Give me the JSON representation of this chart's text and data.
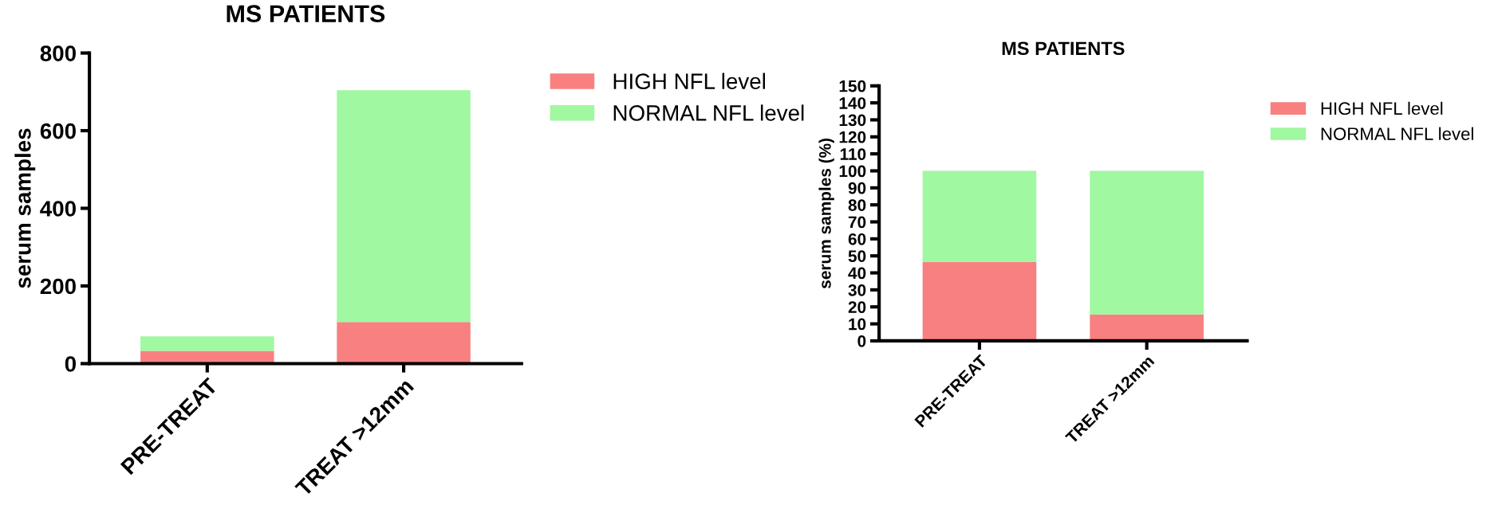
{
  "chart_data": [
    {
      "type": "bar",
      "title": "MS PATIENTS",
      "ylabel": "serum samples",
      "categories": [
        "PRE-TREAT",
        "TREAT >12mm"
      ],
      "stacked": true,
      "ylim": [
        0,
        800
      ],
      "yticks": [
        0,
        200,
        400,
        600,
        800
      ],
      "grid": false,
      "legend": "top right",
      "series": [
        {
          "name": "HIGH NFL level",
          "color": "#f88080",
          "values": [
            33,
            107
          ]
        },
        {
          "name": "NORMAL NFL level",
          "color": "#a0f8a0",
          "values": [
            37,
            597
          ]
        }
      ]
    },
    {
      "type": "bar",
      "title": "MS PATIENTS",
      "ylabel": "serum samples (%)",
      "categories": [
        "PRE-TREAT",
        "TREAT >12mm"
      ],
      "stacked": true,
      "ylim": [
        0,
        150
      ],
      "yticks": [
        0,
        10,
        20,
        30,
        40,
        50,
        60,
        70,
        80,
        90,
        100,
        110,
        120,
        130,
        140,
        150
      ],
      "grid": false,
      "legend": "top right",
      "series": [
        {
          "name": "HIGH NFL level",
          "color": "#f88080",
          "values": [
            46.5,
            15.5
          ]
        },
        {
          "name": "NORMAL NFL level",
          "color": "#a0f8a0",
          "values": [
            53.5,
            84.5
          ]
        }
      ]
    }
  ]
}
